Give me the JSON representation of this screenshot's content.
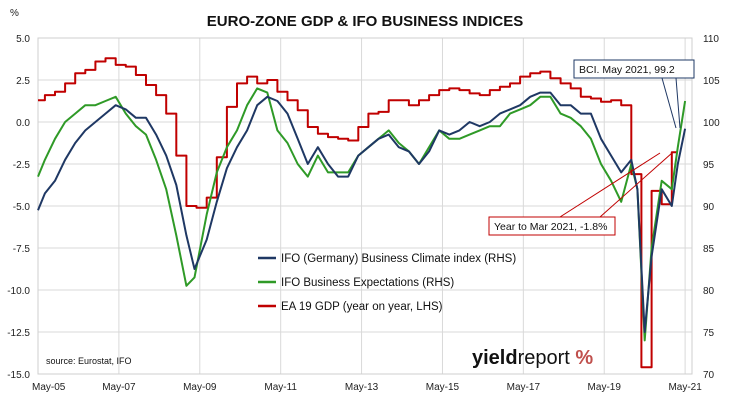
{
  "chart_data": {
    "type": "line",
    "title": "EURO-ZONE GDP & IFO BUSINESS INDICES",
    "left_axis": {
      "unit_label": "%",
      "ylim": [
        -15.0,
        5.0
      ],
      "ticks": [
        "5.0",
        "2.5",
        "0.0",
        "-2.5",
        "-5.0",
        "-7.5",
        "-10.0",
        "-12.5",
        "-15.0"
      ],
      "values": [
        5.0,
        2.5,
        0.0,
        -2.5,
        -5.0,
        -7.5,
        -10.0,
        -12.5,
        -15.0
      ]
    },
    "right_axis": {
      "ylim": [
        70,
        110
      ],
      "ticks": [
        "110",
        "105",
        "100",
        "95",
        "90",
        "85",
        "80",
        "75",
        "70"
      ],
      "values": [
        110,
        105,
        100,
        95,
        90,
        85,
        80,
        75,
        70
      ]
    },
    "x_axis": {
      "range": [
        2005.33,
        2021.5
      ],
      "tick_labels": [
        "May-05",
        "May-07",
        "May-09",
        "May-11",
        "May-13",
        "May-15",
        "May-17",
        "May-19",
        "May-21"
      ],
      "tick_values": [
        2005.33,
        2007.33,
        2009.33,
        2011.33,
        2013.33,
        2015.33,
        2017.33,
        2019.33,
        2021.33
      ]
    },
    "grid": true,
    "legend_position": "bottom-center",
    "series": [
      {
        "name": "IFO (Germany) Business Climate index (RHS)",
        "axis": "right",
        "color": "#1f3864",
        "x": [
          2005.33,
          2005.5,
          2005.75,
          2006.0,
          2006.25,
          2006.5,
          2006.75,
          2007.0,
          2007.25,
          2007.5,
          2007.75,
          2008.0,
          2008.25,
          2008.5,
          2008.75,
          2009.0,
          2009.2,
          2009.5,
          2009.75,
          2010.0,
          2010.25,
          2010.5,
          2010.75,
          2011.0,
          2011.25,
          2011.5,
          2011.75,
          2012.0,
          2012.25,
          2012.5,
          2012.75,
          2013.0,
          2013.25,
          2013.5,
          2013.75,
          2014.0,
          2014.25,
          2014.5,
          2014.75,
          2015.0,
          2015.25,
          2015.5,
          2015.75,
          2016.0,
          2016.25,
          2016.5,
          2016.75,
          2017.0,
          2017.25,
          2017.5,
          2017.75,
          2018.0,
          2018.25,
          2018.5,
          2018.75,
          2019.0,
          2019.25,
          2019.5,
          2019.75,
          2020.0,
          2020.15,
          2020.33,
          2020.5,
          2020.75,
          2021.0,
          2021.15,
          2021.33
        ],
        "y": [
          89.5,
          91.5,
          93,
          95.5,
          97.5,
          99,
          100,
          101,
          102,
          101.5,
          100.5,
          100.5,
          98.5,
          96,
          92.5,
          86.5,
          82.5,
          86,
          90.5,
          94.5,
          97,
          99,
          102,
          103,
          102.5,
          101,
          98,
          95,
          97,
          95,
          93.5,
          93.5,
          96,
          97,
          98,
          98.5,
          97,
          96.5,
          95,
          96.5,
          99,
          98.5,
          99,
          100,
          99.5,
          100,
          101,
          101.5,
          102,
          103,
          103.5,
          103.5,
          102,
          102,
          101,
          101,
          98,
          96,
          94,
          95.5,
          92,
          75,
          84,
          92,
          90,
          95,
          99.2
        ]
      },
      {
        "name": "IFO Business Expectations (RHS)",
        "axis": "right",
        "color": "#2f9a27",
        "x": [
          2005.33,
          2005.5,
          2005.75,
          2006.0,
          2006.25,
          2006.5,
          2006.75,
          2007.0,
          2007.25,
          2007.5,
          2007.75,
          2008.0,
          2008.25,
          2008.5,
          2008.75,
          2009.0,
          2009.2,
          2009.5,
          2009.75,
          2010.0,
          2010.25,
          2010.5,
          2010.75,
          2011.0,
          2011.25,
          2011.5,
          2011.75,
          2012.0,
          2012.25,
          2012.5,
          2012.75,
          2013.0,
          2013.25,
          2013.5,
          2013.75,
          2014.0,
          2014.25,
          2014.5,
          2014.75,
          2015.0,
          2015.25,
          2015.5,
          2015.75,
          2016.0,
          2016.25,
          2016.5,
          2016.75,
          2017.0,
          2017.25,
          2017.5,
          2017.75,
          2018.0,
          2018.25,
          2018.5,
          2018.75,
          2019.0,
          2019.25,
          2019.5,
          2019.75,
          2020.0,
          2020.15,
          2020.33,
          2020.5,
          2020.75,
          2021.0,
          2021.15,
          2021.33
        ],
        "y": [
          93.5,
          95.5,
          98,
          100,
          101,
          102,
          102,
          102.5,
          103,
          101,
          99.5,
          98.5,
          95.5,
          92,
          86.5,
          80.5,
          81.5,
          89,
          94,
          97,
          99,
          102,
          104,
          103.5,
          99,
          97.5,
          95,
          93.5,
          96,
          94,
          94,
          94,
          96,
          97,
          98,
          99,
          97.5,
          96.5,
          95,
          97,
          99,
          98,
          98,
          98.5,
          99,
          99.5,
          99.5,
          101,
          101.5,
          102,
          103,
          103,
          101,
          100.5,
          99.5,
          98,
          95,
          93,
          90.5,
          95,
          92,
          74,
          85,
          93,
          92,
          97,
          102.5
        ]
      },
      {
        "name": "EA 19 GDP (year on year, LHS)",
        "axis": "left",
        "color": "#c00000",
        "x": [
          2005.33,
          2005.5,
          2005.75,
          2006.0,
          2006.25,
          2006.5,
          2006.75,
          2007.0,
          2007.25,
          2007.5,
          2007.75,
          2008.0,
          2008.25,
          2008.5,
          2008.75,
          2009.0,
          2009.25,
          2009.5,
          2009.75,
          2010.0,
          2010.25,
          2010.5,
          2010.75,
          2011.0,
          2011.25,
          2011.5,
          2011.75,
          2012.0,
          2012.25,
          2012.5,
          2012.75,
          2013.0,
          2013.25,
          2013.5,
          2013.75,
          2014.0,
          2014.25,
          2014.5,
          2014.75,
          2015.0,
          2015.25,
          2015.5,
          2015.75,
          2016.0,
          2016.25,
          2016.5,
          2016.75,
          2017.0,
          2017.25,
          2017.5,
          2017.75,
          2018.0,
          2018.25,
          2018.5,
          2018.75,
          2019.0,
          2019.25,
          2019.5,
          2019.75,
          2020.0,
          2020.25,
          2020.5,
          2020.75,
          2021.0,
          2021.15
        ],
        "y": [
          1.3,
          1.6,
          1.8,
          2.3,
          2.9,
          3.1,
          3.6,
          3.8,
          3.4,
          3.3,
          2.8,
          2.2,
          1.6,
          0.5,
          -2.0,
          -5.0,
          -5.1,
          -4.5,
          -2.1,
          0.9,
          2.3,
          2.7,
          2.3,
          2.5,
          1.8,
          1.3,
          0.7,
          -0.3,
          -0.7,
          -0.9,
          -1.0,
          -1.1,
          -0.3,
          0.5,
          0.6,
          1.3,
          1.3,
          1.0,
          1.3,
          1.6,
          1.9,
          2.0,
          1.9,
          1.7,
          1.6,
          1.9,
          2.1,
          2.3,
          2.7,
          2.9,
          3.0,
          2.6,
          2.3,
          2.0,
          1.5,
          1.4,
          1.2,
          1.3,
          1.0,
          -3.1,
          -14.6,
          -4.1,
          -4.9,
          -1.8,
          -1.8
        ]
      }
    ],
    "annotations": [
      {
        "label": "BCI. May 2021, 99.2",
        "border_color": "#1f3864"
      },
      {
        "label": "Year to Mar 2021, -1.8%",
        "border_color": "#c00000"
      }
    ],
    "source": "source: Eurostat, IFO",
    "logo": {
      "part1": "yield",
      "part2": "report",
      "part3": " %"
    }
  }
}
